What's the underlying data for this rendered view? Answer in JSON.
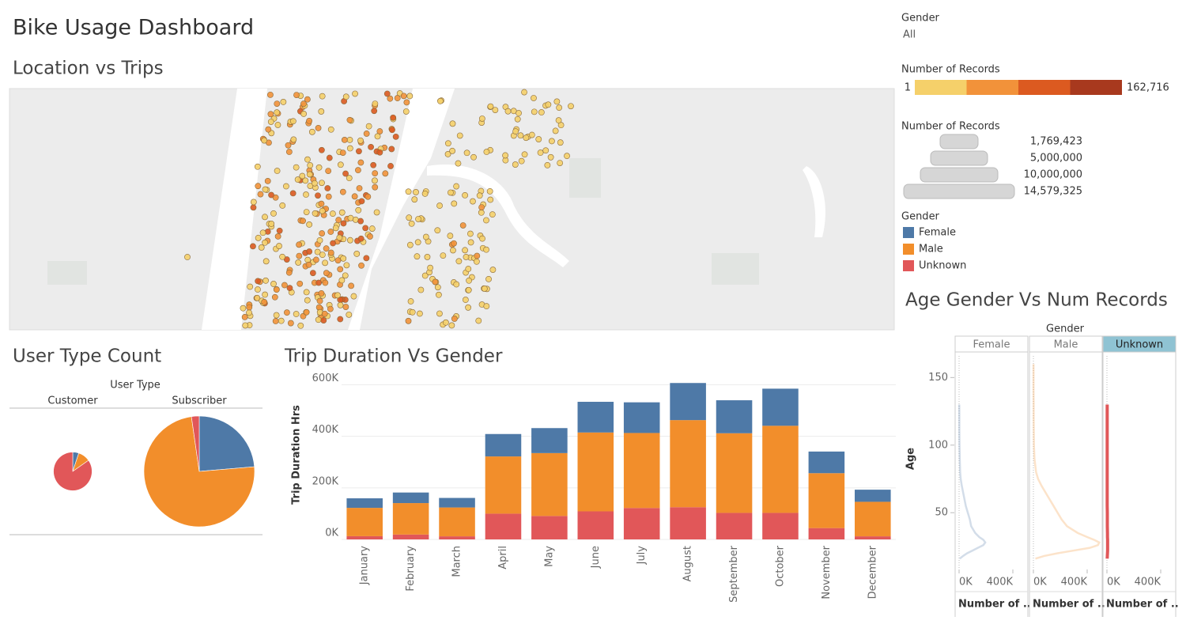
{
  "title": "Bike Usage Dashboard",
  "filter": {
    "label": "Gender",
    "value": "All"
  },
  "map": {
    "title": "Location vs Trips"
  },
  "color_legend": {
    "title": "Number of Records",
    "min": "1",
    "max": "162,716",
    "colors": [
      "#f5d06a",
      "#f2923a",
      "#dc5a20",
      "#a8391e"
    ]
  },
  "size_legend": {
    "title": "Number of Records",
    "labels": [
      "1,769,423",
      "5,000,000",
      "10,000,000",
      "14,579,325"
    ]
  },
  "gender_legend": {
    "title": "Gender",
    "items": [
      "Female",
      "Male",
      "Unknown"
    ]
  },
  "chart_data": [
    {
      "type": "pie",
      "title": "User Type Count",
      "header": "User Type",
      "categories": [
        "Customer",
        "Subscriber"
      ],
      "series": [
        {
          "name": "Female",
          "color": "#4e79a7",
          "values": [
            90000,
            3450000
          ]
        },
        {
          "name": "Male",
          "color": "#f28e2b",
          "values": [
            180000,
            10800000
          ]
        },
        {
          "name": "Unknown",
          "color": "#e15759",
          "values": [
            1500000,
            330000
          ]
        }
      ]
    },
    {
      "type": "bar",
      "stacked": true,
      "title": "Trip Duration Vs Gender",
      "ylabel": "Trip Duration Hrs",
      "categories": [
        "January",
        "February",
        "March",
        "April",
        "May",
        "June",
        "July",
        "August",
        "September",
        "October",
        "November",
        "December"
      ],
      "series": [
        {
          "name": "Unknown",
          "color": "#e15759",
          "values": [
            12500,
            19000,
            12000,
            100000,
            91000,
            109000,
            122000,
            125000,
            103000,
            103000,
            44000,
            12000
          ]
        },
        {
          "name": "Male",
          "color": "#f28e2b",
          "values": [
            110000,
            122000,
            112000,
            222000,
            244000,
            306000,
            291000,
            338000,
            309000,
            338000,
            213000,
            134000
          ]
        },
        {
          "name": "Female",
          "color": "#4e79a7",
          "values": [
            37000,
            41000,
            37000,
            87000,
            97000,
            119000,
            119000,
            144000,
            128000,
            144000,
            84000,
            47000
          ]
        }
      ],
      "ylim": [
        0,
        620000
      ],
      "yticks": [
        {
          "value": 0,
          "label": "0K"
        },
        {
          "value": 200000,
          "label": "200K"
        },
        {
          "value": 400000,
          "label": "400K"
        },
        {
          "value": 600000,
          "label": "600K"
        }
      ],
      "grid": true
    },
    {
      "type": "line",
      "title": "Age Gender Vs Num Records",
      "header": "Gender",
      "ylabel": "Age",
      "xlabel": "Number of ..",
      "y": [
        16,
        18,
        20,
        22,
        24,
        26,
        28,
        30,
        32,
        35,
        40,
        45,
        50,
        55,
        60,
        65,
        70,
        75,
        80,
        90,
        100,
        110,
        120,
        130,
        140,
        160
      ],
      "series": [
        {
          "name": "Female",
          "color": "#4e79a7",
          "values": [
            5000,
            30000,
            60000,
            100000,
            140000,
            180000,
            195000,
            180000,
            150000,
            120000,
            90000,
            80000,
            65000,
            50000,
            40000,
            30000,
            20000,
            12000,
            8000,
            5000,
            3000,
            2000,
            2000,
            1500,
            null,
            null
          ]
        },
        {
          "name": "Male",
          "color": "#f28e2b",
          "values": [
            15000,
            80000,
            180000,
            300000,
            420000,
            480000,
            490000,
            450000,
            400000,
            330000,
            250000,
            210000,
            180000,
            150000,
            120000,
            90000,
            60000,
            35000,
            20000,
            8000,
            4000,
            3000,
            2000,
            2000,
            1000,
            1000
          ]
        },
        {
          "name": "Unknown",
          "color": "#e15759",
          "selected": true,
          "values": [
            2000,
            3000,
            4000,
            5000,
            5000,
            5000,
            5000,
            5000,
            4000,
            4000,
            3000,
            3000,
            3000,
            2000,
            2000,
            2000,
            2000,
            2000,
            2000,
            2000,
            2000,
            2000,
            2000,
            2000,
            null,
            null
          ]
        }
      ],
      "xlim": [
        0,
        500000
      ],
      "xticks": [
        {
          "value": 0,
          "label": "0K"
        },
        {
          "value": 400000,
          "label": "400K"
        }
      ],
      "ylim": [
        8,
        166
      ],
      "yticks": [
        50,
        100,
        150
      ]
    }
  ]
}
